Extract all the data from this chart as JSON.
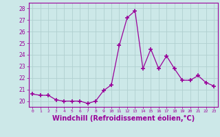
{
  "x": [
    0,
    1,
    2,
    3,
    4,
    5,
    6,
    7,
    8,
    9,
    10,
    11,
    12,
    13,
    14,
    15,
    16,
    17,
    18,
    19,
    20,
    21,
    22,
    23
  ],
  "y": [
    20.6,
    20.5,
    20.5,
    20.1,
    20.0,
    20.0,
    20.0,
    19.8,
    20.0,
    20.9,
    21.4,
    24.8,
    27.2,
    27.8,
    22.8,
    24.5,
    22.8,
    23.9,
    22.8,
    21.8,
    21.8,
    22.2,
    21.6,
    21.3
  ],
  "line_color": "#990099",
  "marker": "+",
  "markersize": 4,
  "markeredgewidth": 1.2,
  "linewidth": 0.9,
  "xlabel": "Windchill (Refroidissement éolien,°C)",
  "xlabel_fontsize": 7,
  "xtick_labels": [
    "0",
    "1",
    "2",
    "3",
    "4",
    "5",
    "6",
    "7",
    "8",
    "9",
    "10",
    "11",
    "12",
    "13",
    "14",
    "15",
    "16",
    "17",
    "18",
    "19",
    "20",
    "21",
    "22",
    "23"
  ],
  "yticks": [
    20,
    21,
    22,
    23,
    24,
    25,
    26,
    27,
    28
  ],
  "ylim": [
    19.5,
    28.5
  ],
  "xlim": [
    -0.5,
    23.5
  ],
  "bg_color": "#cce8e8",
  "grid_color": "#b0d0d0",
  "tick_color": "#990099",
  "label_color": "#990099",
  "spine_color": "#990099"
}
